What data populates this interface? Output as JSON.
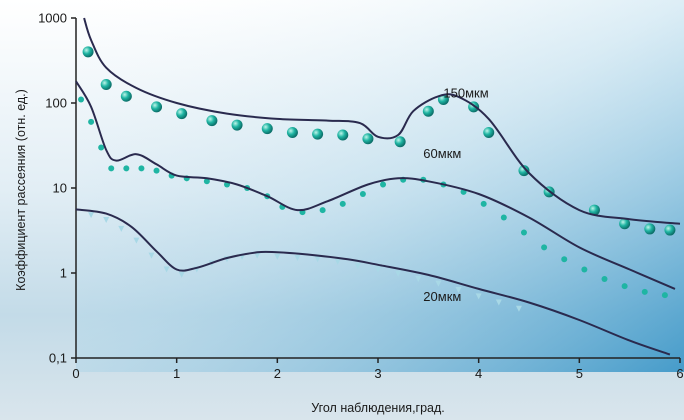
{
  "chart_data": {
    "type": "line",
    "xlabel": "Угол наблюдения,град.",
    "ylabel": "Коэффициент рассеяния (отн. ед.)",
    "xlim": [
      0,
      6
    ],
    "ylim": [
      0.1,
      1000
    ],
    "yscale": "log",
    "x_ticks": [
      "0",
      "1",
      "2",
      "3",
      "4",
      "5",
      "6"
    ],
    "y_ticks": [
      "0,1",
      "1",
      "10",
      "100",
      "1000"
    ],
    "grid": false,
    "series": [
      {
        "name": "150мкм",
        "color": "#2a2a4e",
        "points_color": "#1fb5a3",
        "line": [
          [
            0.08,
            1000
          ],
          [
            0.15,
            550
          ],
          [
            0.3,
            260
          ],
          [
            0.6,
            150
          ],
          [
            1.0,
            100
          ],
          [
            1.5,
            75
          ],
          [
            2.0,
            65
          ],
          [
            2.5,
            62
          ],
          [
            2.82,
            58
          ],
          [
            3.0,
            40
          ],
          [
            3.2,
            42
          ],
          [
            3.35,
            80
          ],
          [
            3.6,
            120
          ],
          [
            3.8,
            118
          ],
          [
            4.1,
            65
          ],
          [
            4.5,
            15
          ],
          [
            5.0,
            5.5
          ],
          [
            5.5,
            4.3
          ],
          [
            6.0,
            3.8
          ]
        ],
        "points": [
          [
            0.12,
            400
          ],
          [
            0.3,
            165
          ],
          [
            0.5,
            120
          ],
          [
            0.8,
            90
          ],
          [
            1.05,
            75
          ],
          [
            1.35,
            62
          ],
          [
            1.6,
            55
          ],
          [
            1.9,
            50
          ],
          [
            2.15,
            45
          ],
          [
            2.4,
            43
          ],
          [
            2.65,
            42
          ],
          [
            2.9,
            38
          ],
          [
            3.22,
            35
          ],
          [
            3.5,
            80
          ],
          [
            3.65,
            110
          ],
          [
            3.95,
            90
          ],
          [
            4.1,
            45
          ],
          [
            4.45,
            16
          ],
          [
            4.7,
            9
          ],
          [
            5.15,
            5.5
          ],
          [
            5.45,
            3.8
          ],
          [
            5.7,
            3.3
          ],
          [
            5.9,
            3.2
          ]
        ]
      },
      {
        "name": "60мкм",
        "color": "#2a2a4e",
        "points_color": "#1fb5a3",
        "line": [
          [
            0.0,
            180
          ],
          [
            0.15,
            90
          ],
          [
            0.3,
            28
          ],
          [
            0.4,
            21
          ],
          [
            0.6,
            25
          ],
          [
            0.8,
            19
          ],
          [
            1.0,
            14
          ],
          [
            1.3,
            13
          ],
          [
            1.6,
            11
          ],
          [
            1.9,
            8
          ],
          [
            2.2,
            5.5
          ],
          [
            2.5,
            7
          ],
          [
            2.9,
            11
          ],
          [
            3.2,
            13
          ],
          [
            3.5,
            12
          ],
          [
            4.0,
            8.5
          ],
          [
            4.5,
            4.5
          ],
          [
            5.0,
            2
          ],
          [
            5.5,
            1.1
          ],
          [
            5.95,
            0.65
          ]
        ],
        "points": [
          [
            0.05,
            110
          ],
          [
            0.15,
            60
          ],
          [
            0.25,
            30
          ],
          [
            0.35,
            17
          ],
          [
            0.5,
            17
          ],
          [
            0.65,
            17
          ],
          [
            0.8,
            16
          ],
          [
            0.95,
            14
          ],
          [
            1.1,
            13
          ],
          [
            1.3,
            12
          ],
          [
            1.5,
            11
          ],
          [
            1.7,
            10
          ],
          [
            1.9,
            8
          ],
          [
            2.05,
            6
          ],
          [
            2.25,
            5.2
          ],
          [
            2.45,
            5.5
          ],
          [
            2.65,
            6.5
          ],
          [
            2.85,
            8.5
          ],
          [
            3.05,
            11
          ],
          [
            3.25,
            12.5
          ],
          [
            3.45,
            12.5
          ],
          [
            3.65,
            11
          ],
          [
            3.85,
            9
          ],
          [
            4.05,
            6.5
          ],
          [
            4.25,
            4.5
          ],
          [
            4.45,
            3
          ],
          [
            4.65,
            2
          ],
          [
            4.85,
            1.45
          ],
          [
            5.05,
            1.1
          ],
          [
            5.25,
            0.85
          ],
          [
            5.45,
            0.7
          ],
          [
            5.65,
            0.6
          ],
          [
            5.85,
            0.55
          ]
        ]
      },
      {
        "name": "20мкм",
        "color": "#2a2a4e",
        "points_color": "#a8d8e6",
        "line": [
          [
            0.0,
            5.6
          ],
          [
            0.3,
            5.0
          ],
          [
            0.55,
            3.5
          ],
          [
            0.8,
            1.8
          ],
          [
            1.0,
            1.1
          ],
          [
            1.2,
            1.15
          ],
          [
            1.5,
            1.5
          ],
          [
            1.8,
            1.75
          ],
          [
            2.0,
            1.75
          ],
          [
            2.3,
            1.65
          ],
          [
            2.7,
            1.45
          ],
          [
            3.0,
            1.25
          ],
          [
            3.5,
            0.95
          ],
          [
            4.0,
            0.65
          ],
          [
            4.5,
            0.45
          ],
          [
            5.0,
            0.28
          ],
          [
            5.5,
            0.16
          ],
          [
            5.9,
            0.11
          ]
        ],
        "points": [
          [
            0.15,
            4.8
          ],
          [
            0.3,
            4.2
          ],
          [
            0.45,
            3.3
          ],
          [
            0.6,
            2.4
          ],
          [
            0.75,
            1.6
          ],
          [
            0.9,
            1.1
          ],
          [
            1.05,
            0.95
          ],
          [
            1.2,
            1.1
          ],
          [
            1.35,
            1.3
          ],
          [
            1.5,
            1.45
          ],
          [
            1.65,
            1.55
          ],
          [
            1.8,
            1.6
          ],
          [
            2.0,
            1.55
          ],
          [
            2.2,
            1.5
          ],
          [
            2.4,
            1.45
          ],
          [
            2.6,
            1.35
          ],
          [
            2.8,
            1.2
          ],
          [
            3.0,
            1.1
          ],
          [
            3.2,
            0.98
          ],
          [
            3.4,
            0.85
          ],
          [
            3.6,
            0.75
          ],
          [
            3.8,
            0.63
          ],
          [
            4.0,
            0.53
          ],
          [
            4.2,
            0.45
          ],
          [
            4.4,
            0.38
          ]
        ]
      }
    ]
  }
}
